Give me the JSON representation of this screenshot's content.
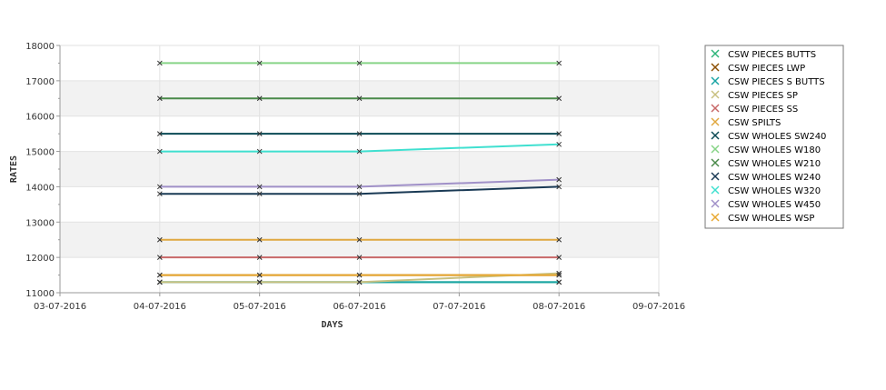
{
  "chart_data": {
    "type": "line",
    "title": "",
    "xlabel": "DAYS",
    "ylabel": "RATES",
    "x_ticks": [
      "03-07-2016",
      "04-07-2016",
      "05-07-2016",
      "06-07-2016",
      "07-07-2016",
      "08-07-2016",
      "09-07-2016"
    ],
    "y_ticks": [
      11000,
      12000,
      13000,
      14000,
      15000,
      16000,
      17000,
      18000
    ],
    "ylim": [
      11000,
      18000
    ],
    "xlim": [
      "03-07-2016",
      "09-07-2016"
    ],
    "x": [
      "04-07-2016",
      "05-07-2016",
      "06-07-2016",
      "08-07-2016"
    ],
    "grid": "alternating horizontal bands, vertical gridlines",
    "legend_position": "right",
    "series": [
      {
        "name": "CSW PIECES BUTTS",
        "color": "#2db57a",
        "values": [
          11300,
          11300,
          11300,
          11300
        ]
      },
      {
        "name": "CSW PIECES LWP",
        "color": "#8b4f00",
        "values": [
          11500,
          11500,
          11500,
          11500
        ]
      },
      {
        "name": "CSW PIECES S BUTTS",
        "color": "#1aa5a5",
        "values": [
          11300,
          11300,
          11300,
          11300
        ]
      },
      {
        "name": "CSW PIECES SP",
        "color": "#c8c080",
        "values": [
          11300,
          11300,
          11300,
          11550
        ]
      },
      {
        "name": "CSW PIECES SS",
        "color": "#c86868",
        "values": [
          12000,
          12000,
          12000,
          12000
        ]
      },
      {
        "name": "CSW SPILTS",
        "color": "#e0a840",
        "values": [
          12500,
          12500,
          12500,
          12500
        ]
      },
      {
        "name": "CSW WHOLES SW240",
        "color": "#0a4a55",
        "values": [
          15500,
          15500,
          15500,
          15500
        ]
      },
      {
        "name": "CSW WHOLES W180",
        "color": "#86d486",
        "values": [
          17500,
          17500,
          17500,
          17500
        ]
      },
      {
        "name": "CSW WHOLES W210",
        "color": "#4a8a4a",
        "values": [
          16500,
          16500,
          16500,
          16500
        ]
      },
      {
        "name": "CSW WHOLES W240",
        "color": "#1a3a55",
        "values": [
          13800,
          13800,
          13800,
          14000
        ]
      },
      {
        "name": "CSW WHOLES W320",
        "color": "#40e0d0",
        "values": [
          15000,
          15000,
          15000,
          15200
        ]
      },
      {
        "name": "CSW WHOLES W450",
        "color": "#a090c8",
        "values": [
          14000,
          14000,
          14000,
          14200
        ]
      },
      {
        "name": "CSW WHOLES WSP",
        "color": "#e8a830",
        "values": [
          11500,
          11500,
          11500,
          11500
        ]
      }
    ]
  }
}
